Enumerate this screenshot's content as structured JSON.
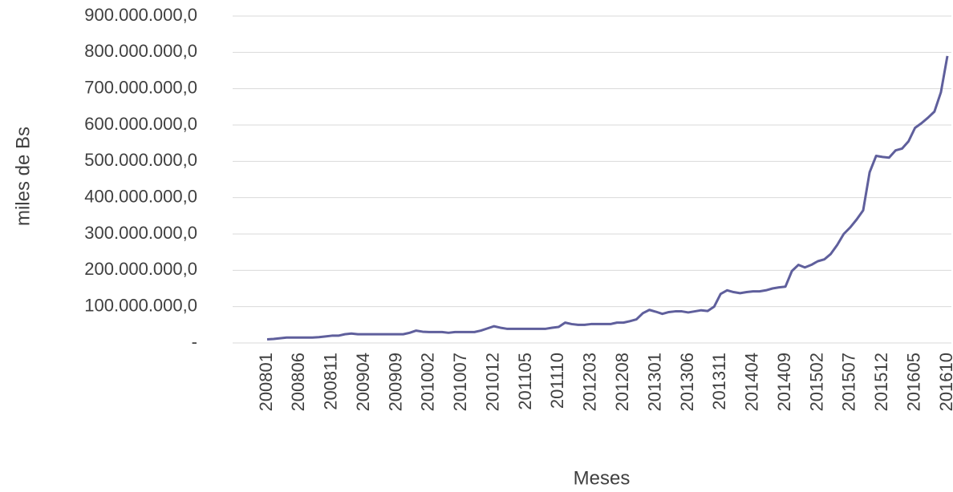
{
  "chart_data": {
    "type": "line",
    "y_axis_label": "miles de Bs",
    "x_axis_label": "Meses",
    "categories": [
      "200801",
      null,
      null,
      null,
      null,
      "200806",
      null,
      null,
      null,
      null,
      "200811",
      null,
      null,
      null,
      null,
      "200904",
      null,
      null,
      null,
      null,
      "200909",
      null,
      null,
      null,
      null,
      "201002",
      null,
      null,
      null,
      null,
      "201007",
      null,
      null,
      null,
      null,
      "201012",
      null,
      null,
      null,
      null,
      "201105",
      null,
      null,
      null,
      null,
      "201110",
      null,
      null,
      null,
      null,
      "201203",
      null,
      null,
      null,
      null,
      "201208",
      null,
      null,
      null,
      null,
      "201301",
      null,
      null,
      null,
      null,
      "201306",
      null,
      null,
      null,
      null,
      "201311",
      null,
      null,
      null,
      null,
      "201404",
      null,
      null,
      null,
      null,
      "201409",
      null,
      null,
      null,
      null,
      "201502",
      null,
      null,
      null,
      null,
      "201507",
      null,
      null,
      null,
      null,
      "201512",
      null,
      null,
      null,
      null,
      "201605",
      null,
      null,
      null,
      null,
      "201610"
    ],
    "values": [
      10000000,
      11000000,
      13000000,
      15000000,
      15000000,
      15000000,
      15000000,
      15000000,
      16000000,
      18000000,
      20000000,
      20000000,
      24000000,
      26000000,
      24000000,
      24000000,
      24000000,
      24000000,
      24000000,
      24000000,
      24000000,
      24000000,
      28000000,
      34000000,
      31000000,
      30000000,
      30000000,
      30000000,
      28000000,
      30000000,
      30000000,
      30000000,
      30000000,
      34000000,
      40000000,
      46000000,
      42000000,
      39000000,
      39000000,
      39000000,
      39000000,
      39000000,
      39000000,
      39000000,
      42000000,
      44000000,
      56000000,
      52000000,
      50000000,
      50000000,
      52000000,
      52000000,
      52000000,
      52000000,
      56000000,
      56000000,
      60000000,
      65000000,
      82000000,
      91000000,
      86000000,
      80000000,
      85000000,
      87000000,
      87000000,
      84000000,
      87000000,
      90000000,
      88000000,
      100000000,
      135000000,
      145000000,
      140000000,
      137000000,
      140000000,
      142000000,
      142000000,
      145000000,
      150000000,
      153000000,
      155000000,
      198000000,
      215000000,
      208000000,
      215000000,
      225000000,
      230000000,
      245000000,
      270000000,
      300000000,
      318000000,
      340000000,
      365000000,
      470000000,
      515000000,
      512000000,
      510000000,
      530000000,
      535000000,
      555000000,
      592000000,
      605000000,
      620000000,
      637000000,
      690000000,
      790000000
    ],
    "color": "#5f5f9c",
    "ylim": [
      0,
      900000000
    ],
    "yticks": [
      {
        "value": 0,
        "label": "-"
      },
      {
        "value": 100000000,
        "label": "100.000.000,0"
      },
      {
        "value": 200000000,
        "label": "200.000.000,0"
      },
      {
        "value": 300000000,
        "label": "300.000.000,0"
      },
      {
        "value": 400000000,
        "label": "400.000.000,0"
      },
      {
        "value": 500000000,
        "label": "500.000.000,0"
      },
      {
        "value": 600000000,
        "label": "600.000.000,0"
      },
      {
        "value": 700000000,
        "label": "700.000.000,0"
      },
      {
        "value": 800000000,
        "label": "800.000.000,0"
      },
      {
        "value": 900000000,
        "label": "900.000.000,0"
      }
    ],
    "grid": true
  }
}
